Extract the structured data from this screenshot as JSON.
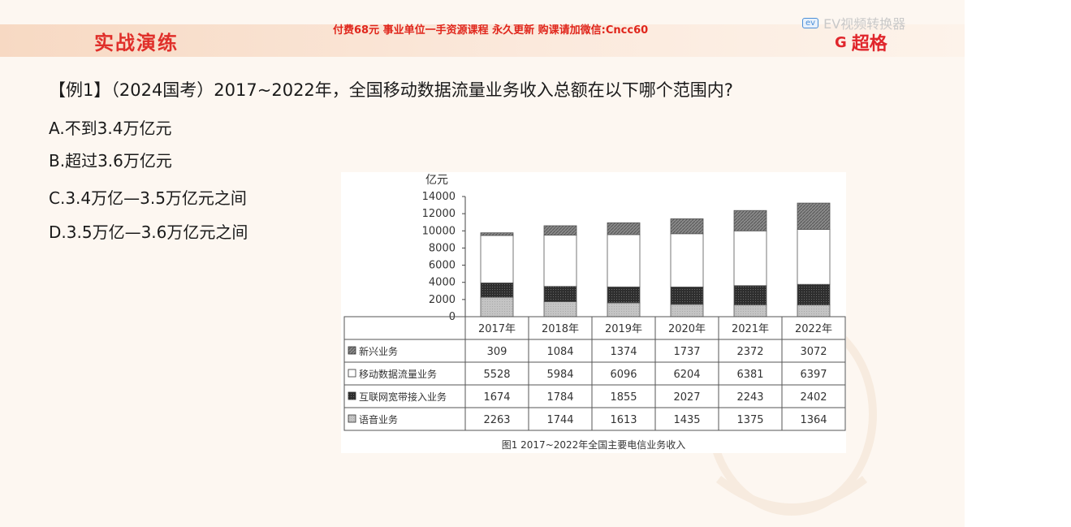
{
  "header": {
    "section_title": "实战演练",
    "ad_text": "付费68元 事业单位一手资源课程 永久更新 购课请加微信:Cncc60",
    "ev_badge": "ev",
    "ev_text": "EV视频转换器",
    "brand_icon": "G",
    "brand_name": "超格"
  },
  "question": {
    "stem": "【例1】（2024国考）2017~2022年，全国移动数据流量业务收入总额在以下哪个范围内?",
    "options": [
      "A.不到3.4万亿元",
      "B.超过3.6万亿元",
      "C.3.4万亿—3.5万亿元之间",
      "D.3.5万亿—3.6万亿元之间"
    ]
  },
  "chart_data": {
    "type": "bar",
    "stacked": true,
    "unit_label": "亿元",
    "ylim": [
      0,
      14000
    ],
    "yticks": [
      0,
      2000,
      4000,
      6000,
      8000,
      10000,
      12000,
      14000
    ],
    "categories": [
      "2017年",
      "2018年",
      "2019年",
      "2020年",
      "2021年",
      "2022年"
    ],
    "series": [
      {
        "name": "语音业务",
        "pattern": "light-gray",
        "values": [
          2263,
          1744,
          1613,
          1435,
          1375,
          1364
        ]
      },
      {
        "name": "互联网宽带接入业务",
        "pattern": "dark-dots",
        "values": [
          1674,
          1784,
          1855,
          2027,
          2243,
          2402
        ]
      },
      {
        "name": "移动数据流量业务",
        "pattern": "white",
        "values": [
          5528,
          5984,
          6096,
          6204,
          6381,
          6397
        ]
      },
      {
        "name": "新兴业务",
        "pattern": "hatched",
        "values": [
          309,
          1084,
          1374,
          1737,
          2372,
          3072
        ]
      }
    ],
    "table_order": [
      3,
      2,
      1,
      0
    ],
    "legend_marks": {
      "新兴业务": "■",
      "移动数据流量业务": "□",
      "互联网宽带接入业务": "■",
      "语音业务": "■"
    },
    "caption": "图1  2017~2022年全国主要电信业务收入"
  }
}
